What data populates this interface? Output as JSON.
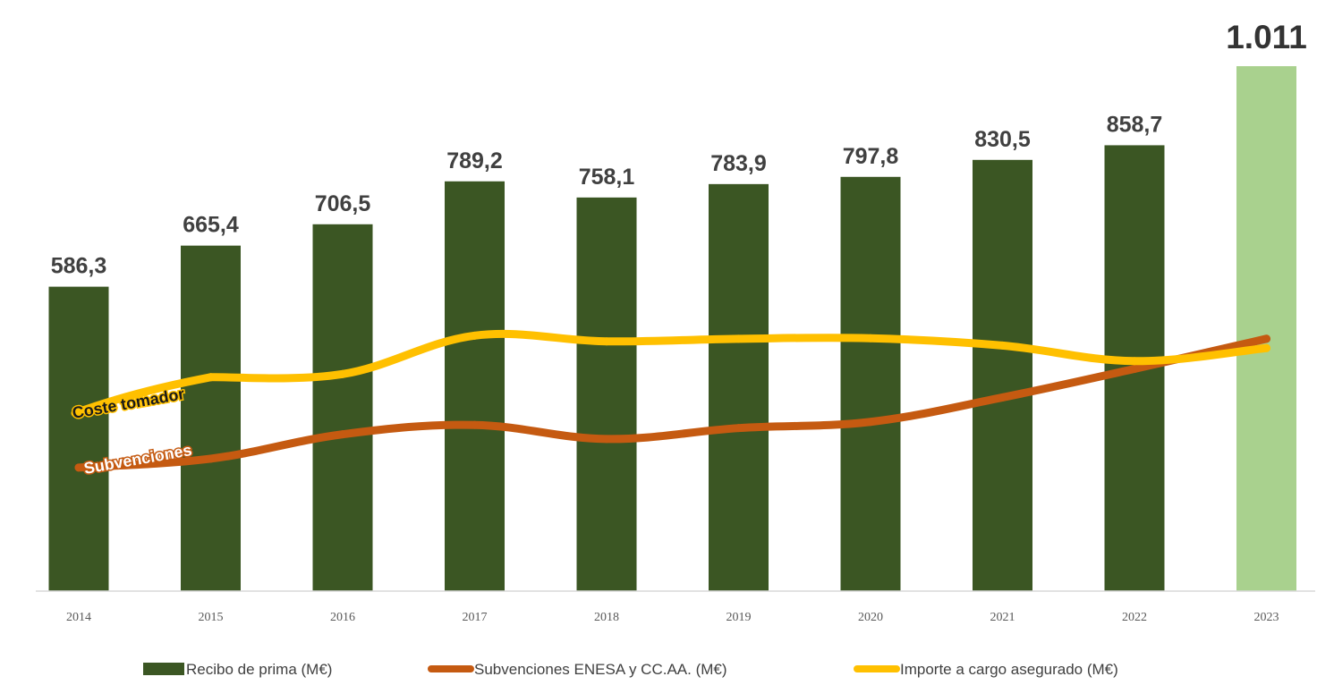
{
  "chart_data": {
    "type": "bar",
    "categories": [
      "2014",
      "2015",
      "2016",
      "2017",
      "2018",
      "2019",
      "2020",
      "2021",
      "2022",
      "2023"
    ],
    "series": [
      {
        "name": "Recibo de prima (M€)",
        "kind": "bar",
        "values": [
          586.3,
          665.4,
          706.5,
          789.2,
          758.1,
          783.9,
          797.8,
          830.5,
          858.7,
          1011
        ],
        "labels": [
          "586,3",
          "665,4",
          "706,5",
          "789,2",
          "758,1",
          "783,9",
          "797,8",
          "830,5",
          "858,7",
          "1.011"
        ],
        "color": "#3b5623",
        "highlight_color": "#a9d18e"
      },
      {
        "name": "Subvenciones ENESA y CC.AA. (M€)",
        "kind": "line",
        "values": [
          238,
          255,
          302,
          320,
          293,
          314,
          326,
          373,
          428,
          486
        ],
        "color": "#c55a11",
        "annotation": "Subvenciones"
      },
      {
        "name": "Importe a cargo asegurado (M€)",
        "kind": "line",
        "values": [
          370,
          412,
          418,
          492,
          481,
          486,
          487,
          473,
          443,
          468
        ],
        "color": "#ffc000",
        "annotation": "Coste tomador"
      }
    ],
    "ylim": [
      0,
      1011
    ],
    "grid": false,
    "legend_position": "bottom"
  }
}
